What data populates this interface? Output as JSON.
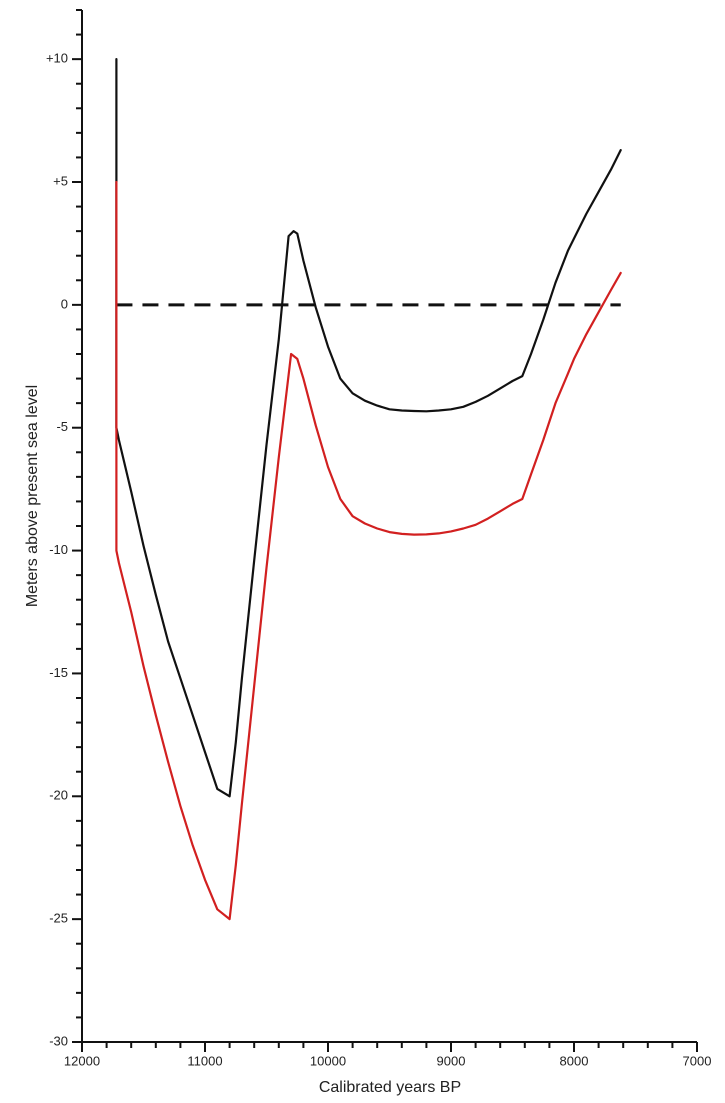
{
  "chart_data": {
    "type": "line",
    "title": "",
    "xlabel": "Calibrated years BP",
    "ylabel": "Meters above present sea level",
    "xlim": [
      12000,
      7000
    ],
    "ylim": [
      -30,
      12
    ],
    "x_reversed": true,
    "grid": false,
    "x_ticks": [
      {
        "value": 12000,
        "label": "12000"
      },
      {
        "value": 11000,
        "label": "11000"
      },
      {
        "value": 10000,
        "label": "10000"
      },
      {
        "value": 9000,
        "label": "9000"
      },
      {
        "value": 8000,
        "label": "8000"
      },
      {
        "value": 7000,
        "label": "7000"
      }
    ],
    "y_ticks": [
      {
        "value": 10,
        "label": "+10"
      },
      {
        "value": 5,
        "label": "+5"
      },
      {
        "value": 0,
        "label": "0"
      },
      {
        "value": -5,
        "label": "-5"
      },
      {
        "value": -10,
        "label": "-10"
      },
      {
        "value": -15,
        "label": "-15"
      },
      {
        "value": -20,
        "label": "-20"
      },
      {
        "value": -25,
        "label": "-25"
      },
      {
        "value": -30,
        "label": "-30"
      }
    ],
    "series": [
      {
        "color": "#111111",
        "x": [
          11720,
          11720,
          11700,
          11600,
          11500,
          11400,
          11300,
          11200,
          11100,
          11000,
          10900,
          10800,
          10750,
          10700,
          10600,
          10500,
          10400,
          10320,
          10280,
          10250,
          10200,
          10100,
          10000,
          9900,
          9800,
          9700,
          9600,
          9500,
          9400,
          9300,
          9200,
          9100,
          9000,
          8900,
          8800,
          8700,
          8600,
          8500,
          8420,
          8350,
          8250,
          8150,
          8050,
          8000,
          7900,
          7800,
          7700,
          7620
        ],
        "y": [
          10,
          -5,
          -5.5,
          -7.6,
          -9.8,
          -11.8,
          -13.7,
          -15.2,
          -16.7,
          -18.2,
          -19.7,
          -20,
          -17.8,
          -15.2,
          -10.4,
          -5.7,
          -1.4,
          2.8,
          3.0,
          2.9,
          1.8,
          -0.1,
          -1.7,
          -3.0,
          -3.6,
          -3.9,
          -4.1,
          -4.25,
          -4.3,
          -4.32,
          -4.33,
          -4.3,
          -4.25,
          -4.15,
          -3.95,
          -3.7,
          -3.4,
          -3.1,
          -2.9,
          -2.0,
          -0.6,
          0.9,
          2.2,
          2.7,
          3.7,
          4.6,
          5.5,
          6.3
        ]
      },
      {
        "color": "#d22020",
        "x": [
          11720,
          11720,
          11700,
          11600,
          11500,
          11400,
          11300,
          11200,
          11100,
          11000,
          10900,
          10800,
          10750,
          10700,
          10600,
          10500,
          10400,
          10300,
          10250,
          10200,
          10100,
          10000,
          9900,
          9800,
          9700,
          9600,
          9500,
          9400,
          9300,
          9200,
          9100,
          9000,
          8900,
          8800,
          8700,
          8600,
          8500,
          8420,
          8350,
          8250,
          8150,
          8050,
          8000,
          7900,
          7800,
          7700,
          7620
        ],
        "y": [
          5,
          -10,
          -10.5,
          -12.5,
          -14.7,
          -16.7,
          -18.6,
          -20.4,
          -22.0,
          -23.4,
          -24.6,
          -25,
          -22.8,
          -20.3,
          -15.5,
          -10.7,
          -6.2,
          -2.0,
          -2.2,
          -3.0,
          -4.9,
          -6.6,
          -7.9,
          -8.6,
          -8.9,
          -9.1,
          -9.25,
          -9.32,
          -9.35,
          -9.34,
          -9.3,
          -9.22,
          -9.1,
          -8.95,
          -8.7,
          -8.4,
          -8.1,
          -7.9,
          -6.9,
          -5.5,
          -4.0,
          -2.8,
          -2.2,
          -1.2,
          -0.3,
          0.6,
          1.3
        ]
      }
    ],
    "reference_lines": [
      {
        "axis": "y",
        "value": 0,
        "color": "#111111",
        "style": "dashed",
        "x_range": [
          11720,
          7620
        ]
      }
    ]
  }
}
